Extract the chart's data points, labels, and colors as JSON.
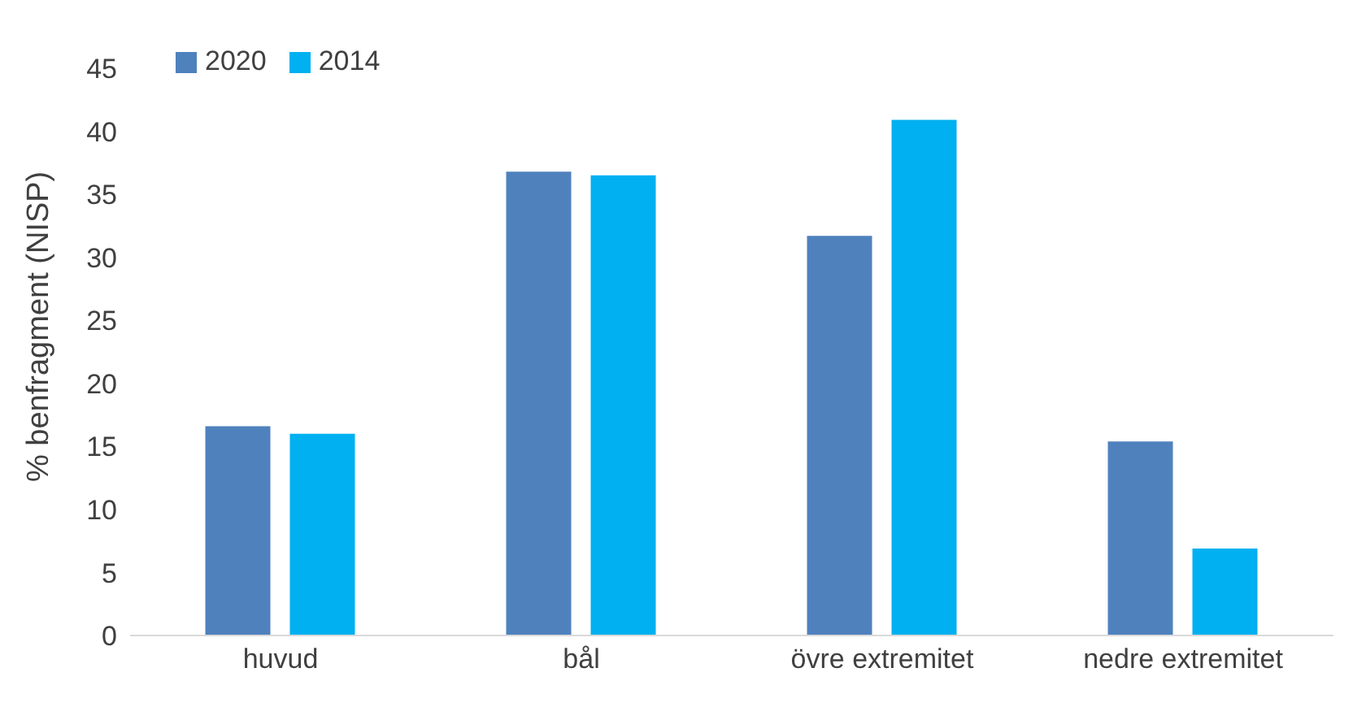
{
  "chart_data": {
    "type": "bar",
    "ylabel": "% benfragment (NISP)",
    "categories": [
      "huvud",
      "bål",
      "övre extremitet",
      "nedre extremitet"
    ],
    "series": [
      {
        "name": "2020",
        "color": "#4f81bd",
        "values": [
          16.6,
          36.8,
          31.7,
          15.4
        ]
      },
      {
        "name": "2014",
        "color": "#00b0f0",
        "values": [
          16.0,
          36.5,
          40.9,
          6.9
        ]
      }
    ],
    "ylim": [
      0,
      45
    ],
    "yticks": [
      0,
      5,
      10,
      15,
      20,
      25,
      30,
      35,
      40,
      45
    ],
    "grid": false,
    "legend": "top left"
  }
}
